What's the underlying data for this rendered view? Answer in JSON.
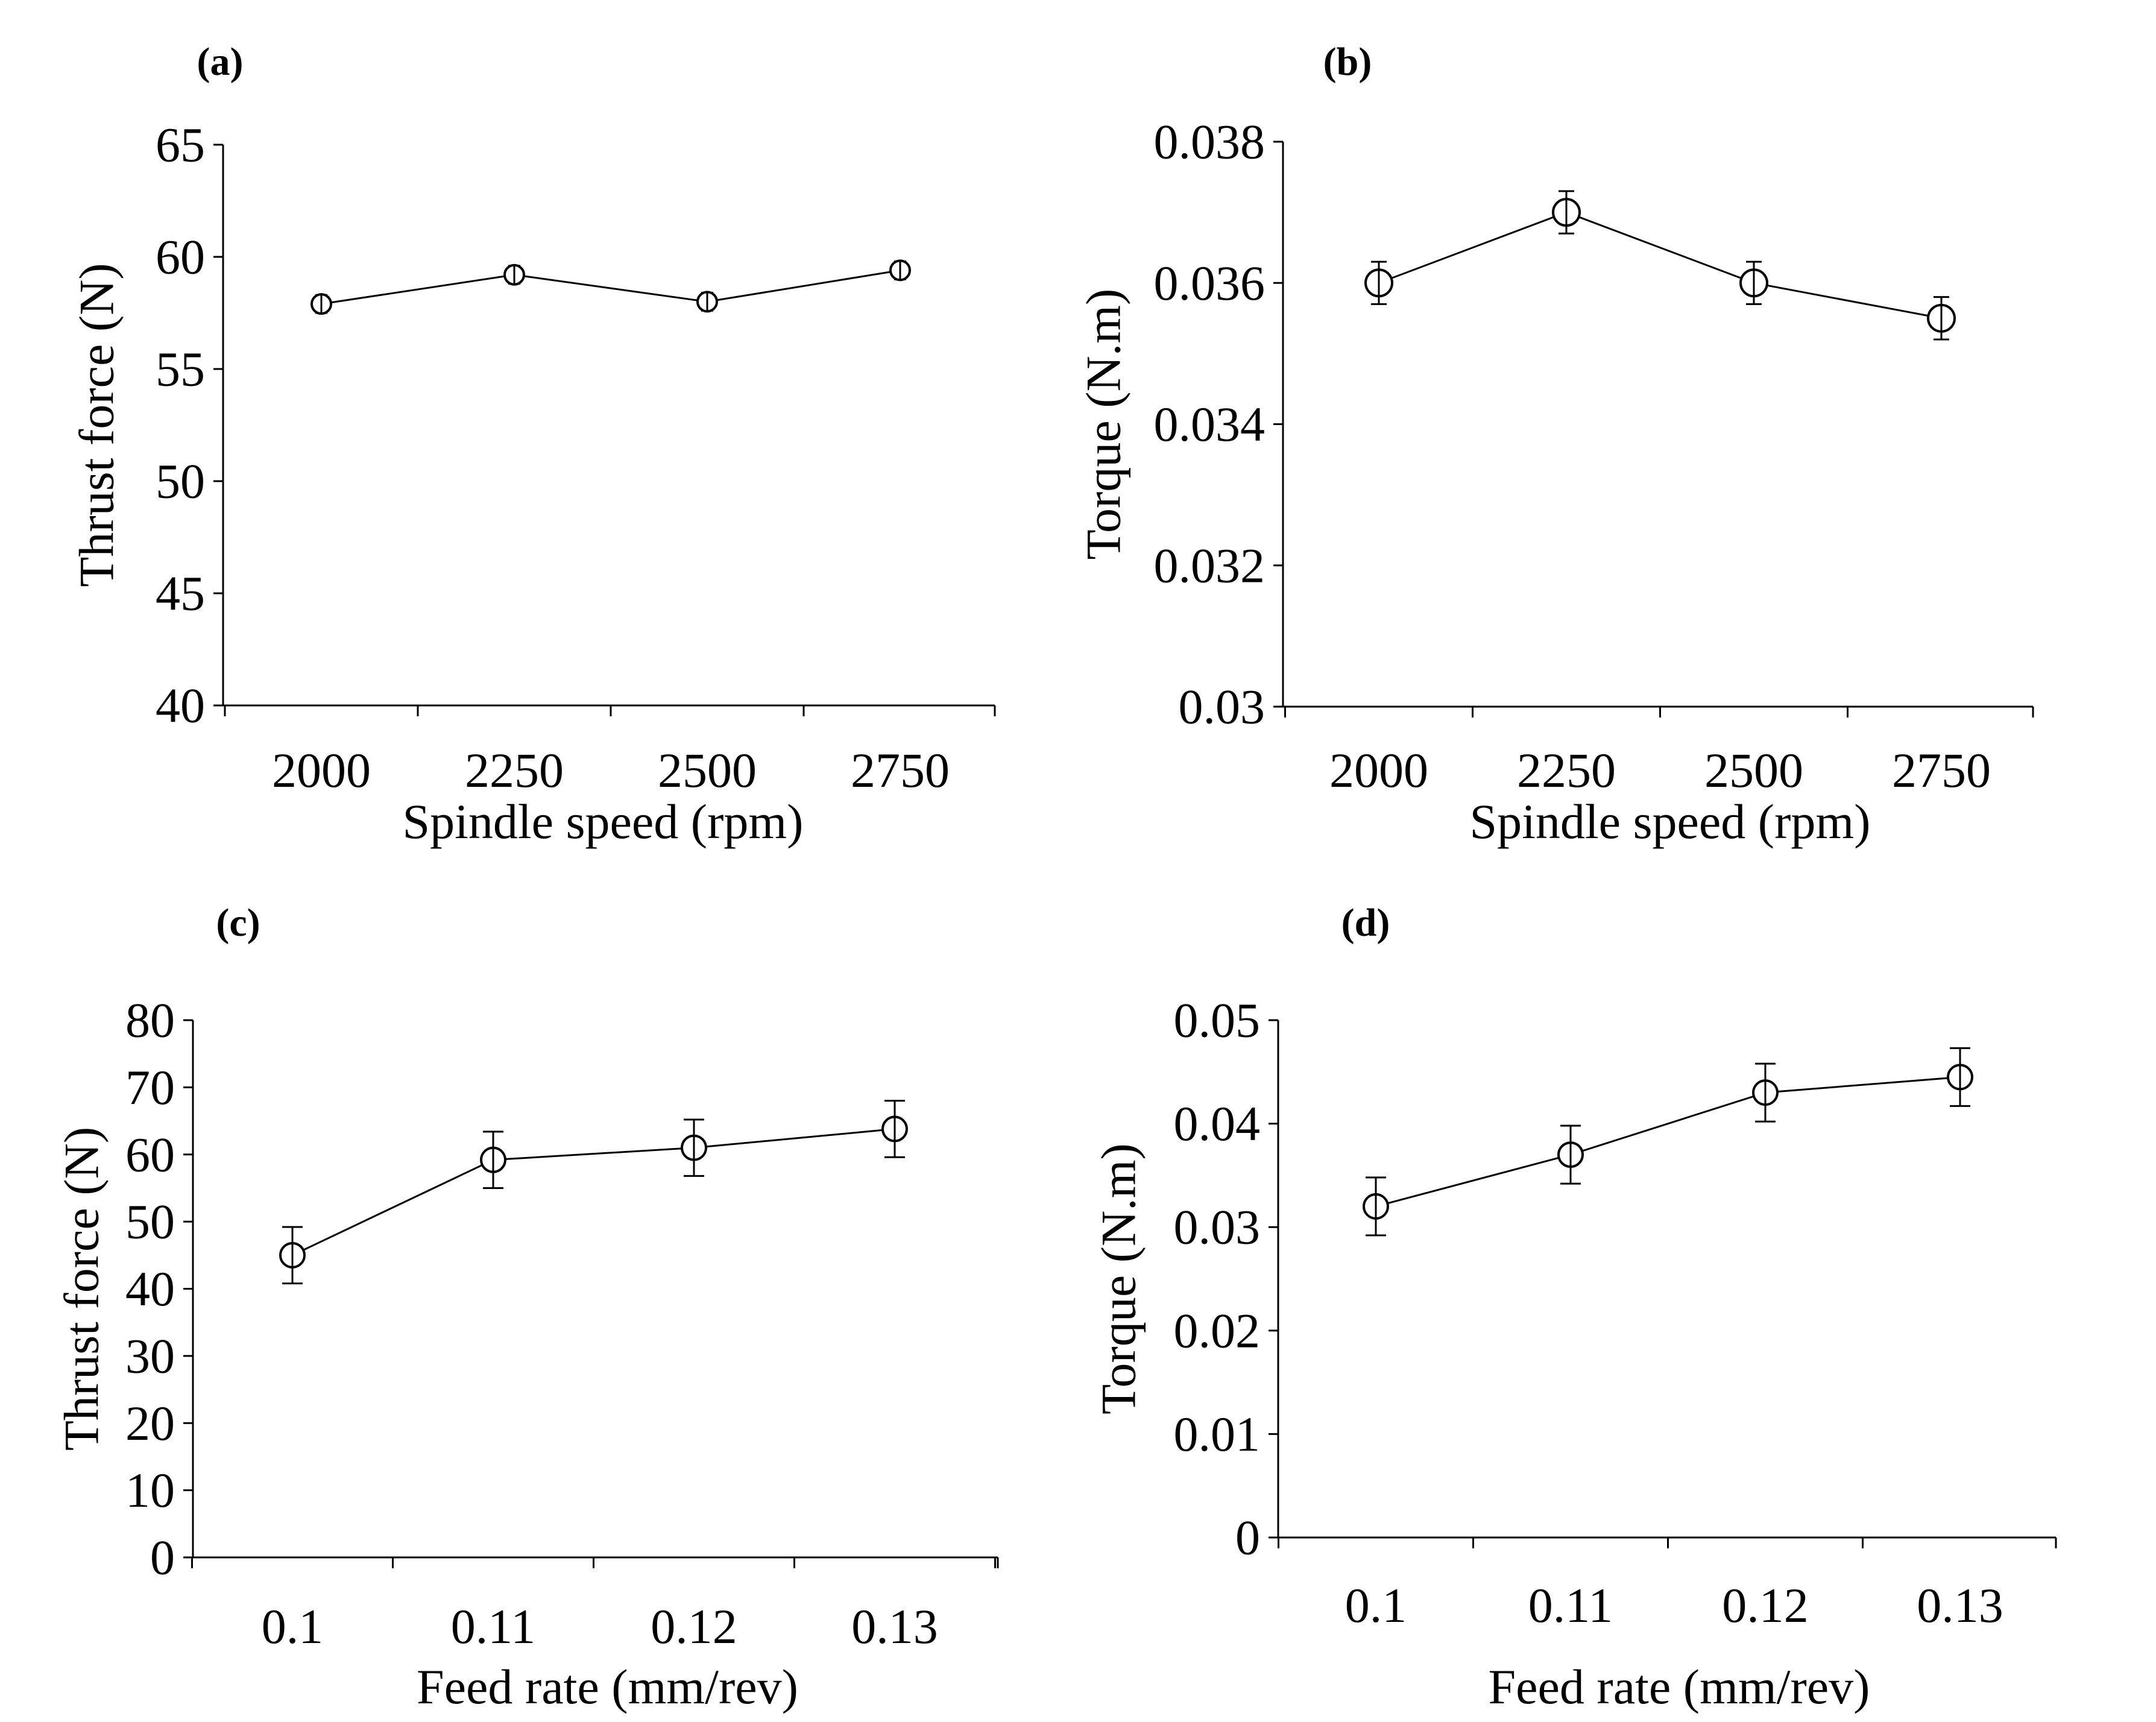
{
  "chart_data": [
    {
      "type": "line",
      "panel_label": "(a)",
      "categories": [
        "2000",
        "2250",
        "2500",
        "2750"
      ],
      "values": [
        57.9,
        59.2,
        58.0,
        59.4
      ],
      "error": [
        0.4,
        0.4,
        0.4,
        0.4
      ],
      "xlabel": "Spindle speed (rpm)",
      "ylabel": "Thrust force (N)",
      "ylim": [
        40,
        65
      ],
      "yticks": [
        "40",
        "45",
        "50",
        "55",
        "60",
        "65"
      ],
      "ytick_values": [
        40,
        45,
        50,
        55,
        60,
        65
      ],
      "grid": false
    },
    {
      "type": "line",
      "panel_label": "(b)",
      "categories": [
        "2000",
        "2250",
        "2500",
        "2750"
      ],
      "values": [
        0.036,
        0.037,
        0.036,
        0.0355
      ],
      "error": [
        0.0003,
        0.0003,
        0.0003,
        0.0003
      ],
      "xlabel": "Spindle speed (rpm)",
      "ylabel": "Torque (N.m)",
      "ylim": [
        0.03,
        0.038
      ],
      "yticks": [
        "0.03",
        "0.032",
        "0.034",
        "0.036",
        "0.038"
      ],
      "ytick_values": [
        0.03,
        0.032,
        0.034,
        0.036,
        0.038
      ],
      "grid": false
    },
    {
      "type": "line",
      "panel_label": "(c)",
      "categories": [
        "0.1",
        "0.11",
        "0.12",
        "0.13"
      ],
      "values": [
        45,
        59.2,
        61,
        63.8
      ],
      "error": [
        4.2,
        4.2,
        4.2,
        4.2
      ],
      "xlabel": "Feed rate (mm/rev)",
      "ylabel": "Thrust force (N)",
      "ylim": [
        0,
        80
      ],
      "yticks": [
        "0",
        "10",
        "20",
        "30",
        "40",
        "50",
        "60",
        "70",
        "80"
      ],
      "ytick_values": [
        0,
        10,
        20,
        30,
        40,
        50,
        60,
        70,
        80
      ],
      "grid": false
    },
    {
      "type": "line",
      "panel_label": "(d)",
      "categories": [
        "0.1",
        "0.11",
        "0.12",
        "0.13"
      ],
      "values": [
        0.032,
        0.037,
        0.043,
        0.0445
      ],
      "error": [
        0.0028,
        0.0028,
        0.0028,
        0.0028
      ],
      "xlabel": "Feed rate (mm/rev)",
      "ylabel": "Torque (N.m)",
      "ylim": [
        0,
        0.05
      ],
      "yticks": [
        "0",
        "0.01",
        "0.02",
        "0.03",
        "0.04",
        "0.05"
      ],
      "ytick_values": [
        0,
        0.01,
        0.02,
        0.03,
        0.04,
        0.05
      ],
      "grid": false
    }
  ]
}
